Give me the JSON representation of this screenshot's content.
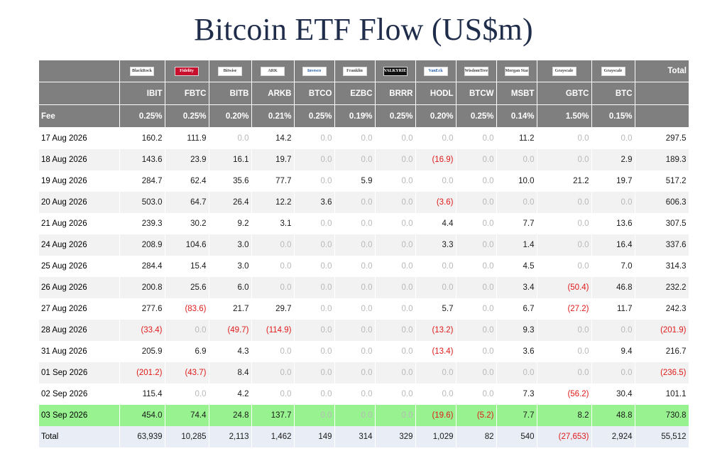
{
  "title": "Bitcoin ETF Flow (US$m)",
  "header": {
    "total_label": "Total",
    "fee_label": "Fee",
    "logos": [
      "BlackRock",
      "Fidelity",
      "Bitwise",
      "ARK",
      "Invesco",
      "Franklin",
      "VALKYRIE",
      "VanEck",
      "WisdomTree",
      "Morgan Stanley",
      "Grayscale",
      "Grayscale"
    ],
    "tickers": [
      "IBIT",
      "FBTC",
      "BITB",
      "ARKB",
      "BTCO",
      "EZBC",
      "BRRR",
      "HODL",
      "BTCW",
      "MSBT",
      "GBTC",
      "BTC"
    ],
    "fees": [
      "0.25%",
      "0.25%",
      "0.20%",
      "0.21%",
      "0.25%",
      "0.19%",
      "0.25%",
      "0.20%",
      "0.25%",
      "0.14%",
      "1.50%",
      "0.15%"
    ]
  },
  "rows": [
    {
      "date": "17 Aug 2026",
      "values": [
        "160.2",
        "111.9",
        "0.0",
        "14.2",
        "0.0",
        "0.0",
        "0.0",
        "0.0",
        "0.0",
        "11.2",
        "0.0",
        "0.0"
      ],
      "total": "297.5"
    },
    {
      "date": "18 Aug 2026",
      "values": [
        "143.6",
        "23.9",
        "16.1",
        "19.7",
        "0.0",
        "0.0",
        "0.0",
        "(16.9)",
        "0.0",
        "0.0",
        "0.0",
        "2.9"
      ],
      "total": "189.3"
    },
    {
      "date": "19 Aug 2026",
      "values": [
        "284.7",
        "62.4",
        "35.6",
        "77.7",
        "0.0",
        "5.9",
        "0.0",
        "0.0",
        "0.0",
        "10.0",
        "21.2",
        "19.7"
      ],
      "total": "517.2"
    },
    {
      "date": "20 Aug 2026",
      "values": [
        "503.0",
        "64.7",
        "26.4",
        "12.2",
        "3.6",
        "0.0",
        "0.0",
        "(3.6)",
        "0.0",
        "0.0",
        "0.0",
        "0.0"
      ],
      "total": "606.3"
    },
    {
      "date": "21 Aug 2026",
      "values": [
        "239.3",
        "30.2",
        "9.2",
        "3.1",
        "0.0",
        "0.0",
        "0.0",
        "4.4",
        "0.0",
        "7.7",
        "0.0",
        "13.6"
      ],
      "total": "307.5"
    },
    {
      "date": "24 Aug 2026",
      "values": [
        "208.9",
        "104.6",
        "3.0",
        "0.0",
        "0.0",
        "0.0",
        "0.0",
        "3.3",
        "0.0",
        "1.4",
        "0.0",
        "16.4"
      ],
      "total": "337.6"
    },
    {
      "date": "25 Aug 2026",
      "values": [
        "284.4",
        "15.4",
        "3.0",
        "0.0",
        "0.0",
        "0.0",
        "0.0",
        "0.0",
        "0.0",
        "4.5",
        "0.0",
        "7.0"
      ],
      "total": "314.3"
    },
    {
      "date": "26 Aug 2026",
      "values": [
        "200.8",
        "25.6",
        "6.0",
        "0.0",
        "0.0",
        "0.0",
        "0.0",
        "0.0",
        "0.0",
        "3.4",
        "(50.4)",
        "46.8"
      ],
      "total": "232.2"
    },
    {
      "date": "27 Aug 2026",
      "values": [
        "277.6",
        "(83.6)",
        "21.7",
        "29.7",
        "0.0",
        "0.0",
        "0.0",
        "5.7",
        "0.0",
        "6.7",
        "(27.2)",
        "11.7"
      ],
      "total": "242.3"
    },
    {
      "date": "28 Aug 2026",
      "values": [
        "(33.4)",
        "0.0",
        "(49.7)",
        "(114.9)",
        "0.0",
        "0.0",
        "0.0",
        "(13.2)",
        "0.0",
        "9.3",
        "0.0",
        "0.0"
      ],
      "total": "(201.9)"
    },
    {
      "date": "31 Aug 2026",
      "values": [
        "205.9",
        "6.9",
        "4.3",
        "0.0",
        "0.0",
        "0.0",
        "0.0",
        "(13.4)",
        "0.0",
        "3.6",
        "0.0",
        "9.4"
      ],
      "total": "216.7"
    },
    {
      "date": "01 Sep 2026",
      "values": [
        "(201.2)",
        "(43.7)",
        "8.4",
        "0.0",
        "0.0",
        "0.0",
        "0.0",
        "0.0",
        "0.0",
        "0.0",
        "0.0",
        "0.0"
      ],
      "total": "(236.5)"
    },
    {
      "date": "02 Sep 2026",
      "values": [
        "115.4",
        "0.0",
        "4.2",
        "0.0",
        "0.0",
        "0.0",
        "0.0",
        "0.0",
        "0.0",
        "7.3",
        "(56.2)",
        "30.4"
      ],
      "total": "101.1"
    },
    {
      "date": "03 Sep 2026",
      "values": [
        "454.0",
        "74.4",
        "24.8",
        "137.7",
        "0.0",
        "0.0",
        "0.0",
        "(19.6)",
        "(5.2)",
        "7.7",
        "8.2",
        "48.8"
      ],
      "total": "730.8",
      "highlight": true
    }
  ],
  "totals": {
    "label": "Total",
    "values": [
      "63,939",
      "10,285",
      "2,113",
      "1,462",
      "149",
      "314",
      "329",
      "1,029",
      "82",
      "540",
      "(27,653)",
      "2,924"
    ],
    "total": "55,512"
  },
  "colors": {
    "header_bg": "#7f7f7f",
    "negative": "#e01a1a",
    "zero": "#b8b8b8",
    "highlight": "#98f28f",
    "total_row": "#e9edf5"
  }
}
